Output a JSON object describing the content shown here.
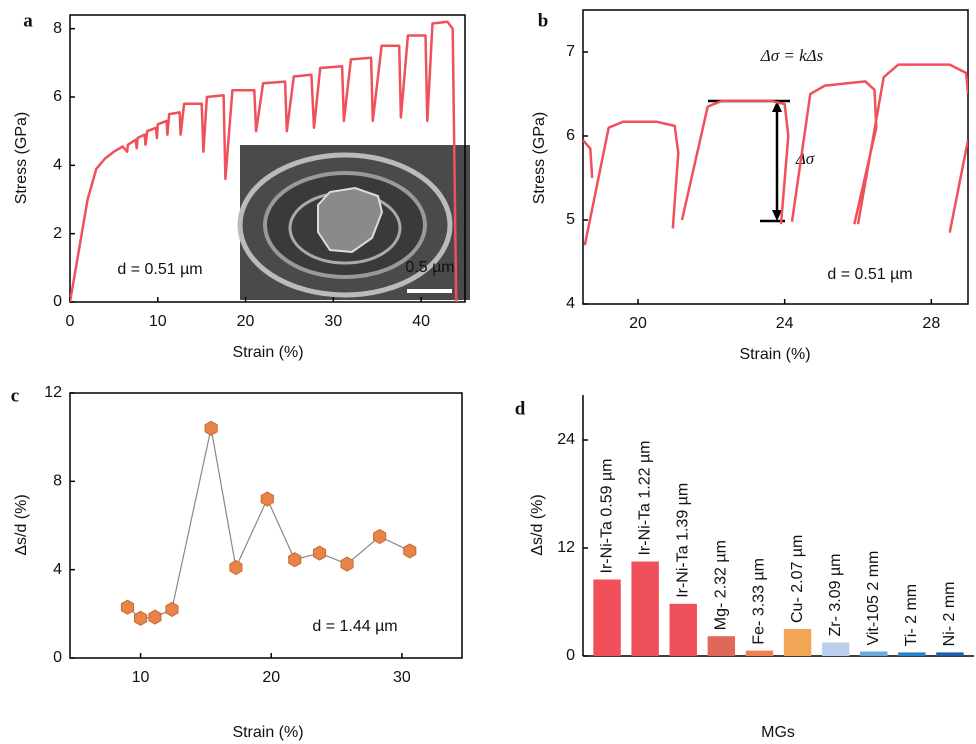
{
  "chart_data": [
    {
      "type": "line",
      "panel_label": "a",
      "xlabel": "Strain (%)",
      "ylabel": "Stress (GPa)",
      "annotation": "d = 0.51 µm",
      "inset_scale_label": "0.5 µm",
      "color": "#f0505a",
      "xlim": [
        0,
        45
      ],
      "ylim": [
        0,
        8.4
      ],
      "xticks": [
        0,
        10,
        20,
        30,
        40
      ],
      "yticks": [
        0,
        2,
        4,
        6,
        8
      ],
      "x": [
        0,
        1,
        2,
        3,
        4,
        5,
        6,
        6.5,
        6.6,
        7.5,
        7.6,
        7.7,
        8.5,
        8.6,
        8.8,
        9.8,
        9.9,
        10,
        11,
        11.1,
        11.3,
        12.5,
        12.6,
        13,
        15,
        15.2,
        15.6,
        17.5,
        17.7,
        18.5,
        21,
        21.2,
        22,
        24.5,
        24.7,
        25.5,
        27.5,
        27.8,
        28.5,
        31,
        31.2,
        32,
        34.3,
        34.5,
        35.5,
        37.5,
        37.7,
        38.5,
        40.5,
        40.7,
        41.3,
        43,
        43.6,
        44
      ],
      "values": [
        0,
        1.5,
        3,
        3.9,
        4.2,
        4.4,
        4.55,
        4.4,
        4.6,
        4.75,
        4.5,
        4.8,
        4.9,
        4.6,
        5.0,
        5.1,
        4.8,
        5.2,
        5.3,
        4.9,
        5.5,
        5.55,
        4.9,
        5.8,
        5.8,
        4.4,
        6.0,
        6.05,
        3.6,
        6.2,
        6.2,
        5.0,
        6.4,
        6.45,
        5.0,
        6.6,
        6.65,
        5.1,
        6.85,
        6.9,
        5.3,
        7.1,
        7.15,
        5.3,
        7.5,
        7.5,
        5.4,
        7.8,
        7.8,
        5.3,
        8.15,
        8.2,
        8.0,
        0
      ]
    },
    {
      "type": "line",
      "panel_label": "b",
      "xlabel": "Strain (%)",
      "ylabel": "Stress (GPa)",
      "annotation": "d = 0.51 µm",
      "equation": "Δσ = kΔs",
      "delta_label": "Δσ",
      "color": "#f0505a",
      "xlim": [
        18.5,
        29
      ],
      "ylim": [
        4,
        7.5
      ],
      "xticks": [
        20,
        24,
        28
      ],
      "yticks": [
        4,
        5,
        6,
        7
      ],
      "x": [
        18.5,
        18.7,
        18.75,
        null,
        18.55,
        19.2,
        19.6,
        20.5,
        21.0,
        21.1,
        20.95,
        null,
        21.2,
        21.9,
        22.3,
        23.6,
        24.0,
        24.1,
        23.9,
        null,
        24.2,
        24.7,
        25.1,
        26.2,
        26.45,
        26.5,
        25.9,
        null,
        26.0,
        26.7,
        27.1,
        28.5,
        28.95,
        29,
        null,
        28.5,
        29
      ],
      "values": [
        5.95,
        5.85,
        5.5,
        null,
        4.7,
        6.1,
        6.17,
        6.17,
        6.12,
        5.8,
        4.9,
        null,
        5.0,
        6.35,
        6.42,
        6.42,
        6.38,
        6.0,
        4.95,
        null,
        4.98,
        6.5,
        6.6,
        6.65,
        6.55,
        6.1,
        4.95,
        null,
        4.95,
        6.7,
        6.85,
        6.85,
        6.75,
        6.5,
        null,
        4.85,
        5.95
      ]
    },
    {
      "type": "line",
      "markers": true,
      "panel_label": "c",
      "xlabel": "Strain (%)",
      "ylabel": "Δs/d (%)",
      "annotation": "d = 1.44 µm",
      "color": "#e8844a",
      "line_color": "#888888",
      "xlim": [
        4.6,
        34.6
      ],
      "ylim": [
        0,
        12
      ],
      "xticks": [
        10,
        20,
        30
      ],
      "yticks": [
        0,
        4,
        8,
        12
      ],
      "x": [
        9.0,
        10.0,
        11.1,
        12.4,
        15.4,
        17.3,
        19.7,
        21.8,
        23.7,
        25.8,
        28.3,
        30.6
      ],
      "values": [
        2.3,
        1.8,
        1.85,
        2.2,
        10.4,
        4.1,
        7.2,
        4.45,
        4.75,
        4.25,
        5.5,
        4.85
      ]
    },
    {
      "type": "bar",
      "panel_label": "d",
      "xlabel": "MGs",
      "ylabel": "Δs/d (%)",
      "ylim": [
        0,
        29
      ],
      "yticks": [
        0,
        12,
        24
      ],
      "categories": [
        "Ir-Ni-Ta 0.59 µm",
        "Ir-Ni-Ta 1.22 µm",
        "Ir-Ni-Ta 1.39 µm",
        "Mg- 2.32 µm",
        "Fe- 3.33 µm",
        "Cu- 2.07 µm",
        "Zr- 3.09 µm",
        "Vit-105 2 mm",
        "Ti- 2 mm",
        "Ni- 2 mm"
      ],
      "values": [
        8.5,
        10.5,
        5.8,
        2.2,
        0.6,
        3.0,
        1.5,
        0.5,
        0.4,
        0.4
      ],
      "colors": [
        "#f0505a",
        "#f0505a",
        "#f0505a",
        "#e0685a",
        "#f08050",
        "#f2a555",
        "#bcd0ee",
        "#6aaad8",
        "#3080c4",
        "#1f5ea8"
      ]
    }
  ]
}
